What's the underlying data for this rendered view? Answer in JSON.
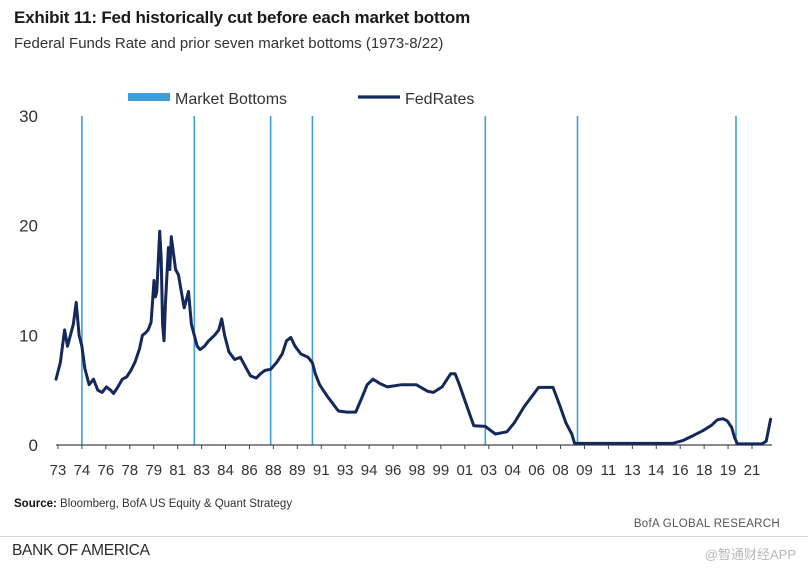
{
  "header": {
    "title": "Exhibit 11: Fed historically cut before each market bottom",
    "subtitle": "Federal Funds Rate and prior seven market bottoms (1973-8/22)"
  },
  "footer": {
    "source_label": "Source:",
    "source_text": "Bloomberg, BofA US Equity & Quant Strategy",
    "research": "BofA GLOBAL RESEARCH",
    "brand": "BANK OF AMERICA",
    "watermark": "@智通财经APP"
  },
  "colors": {
    "line": "#14285a",
    "bottoms": "#3e9fd8",
    "axis": "#444444"
  },
  "chart_data": {
    "type": "line",
    "title": "Exhibit 11: Fed historically cut before each market bottom",
    "subtitle": "Federal Funds Rate and prior seven market bottoms (1973-8/22)",
    "xlabel": "",
    "ylabel": "",
    "xlim": [
      1973,
      2022.7
    ],
    "ylim": [
      0,
      30
    ],
    "y_ticks": [
      0,
      10,
      20,
      30
    ],
    "x_tick_labels": [
      "73",
      "74",
      "76",
      "78",
      "79",
      "81",
      "83",
      "84",
      "86",
      "88",
      "89",
      "91",
      "93",
      "94",
      "96",
      "98",
      "99",
      "01",
      "03",
      "04",
      "06",
      "08",
      "09",
      "11",
      "13",
      "14",
      "16",
      "18",
      "19",
      "21"
    ],
    "legend": [
      "Market Bottoms",
      "FedRates"
    ],
    "legend_position": "top",
    "market_bottoms": [
      1974.8,
      1982.6,
      1987.9,
      1990.8,
      2002.8,
      2009.2,
      2020.2
    ],
    "series": [
      {
        "name": "FedRates",
        "x": [
          1973.0,
          1973.3,
          1973.6,
          1973.8,
          1974.0,
          1974.2,
          1974.4,
          1974.6,
          1974.8,
          1975.0,
          1975.3,
          1975.6,
          1975.9,
          1976.2,
          1976.5,
          1976.8,
          1977.0,
          1977.3,
          1977.6,
          1977.9,
          1978.2,
          1978.5,
          1978.8,
          1979.0,
          1979.2,
          1979.4,
          1979.6,
          1979.7,
          1979.8,
          1979.9,
          1980.0,
          1980.2,
          1980.3,
          1980.4,
          1980.5,
          1980.6,
          1980.8,
          1980.9,
          1981.0,
          1981.1,
          1981.3,
          1981.5,
          1981.7,
          1981.9,
          1982.0,
          1982.2,
          1982.4,
          1982.6,
          1982.8,
          1983.0,
          1983.3,
          1983.6,
          1984.0,
          1984.3,
          1984.5,
          1984.7,
          1985.0,
          1985.4,
          1985.8,
          1986.2,
          1986.5,
          1986.9,
          1987.2,
          1987.5,
          1987.9,
          1988.3,
          1988.7,
          1989.0,
          1989.3,
          1989.6,
          1990.0,
          1990.5,
          1990.8,
          1991.0,
          1991.3,
          1991.8,
          1992.2,
          1992.6,
          1993.2,
          1993.8,
          1994.2,
          1994.6,
          1995.0,
          1995.5,
          1996.0,
          1997.0,
          1998.0,
          1998.8,
          1999.2,
          1999.8,
          2000.4,
          2000.7,
          2001.0,
          2001.4,
          2001.8,
          2002.0,
          2002.8,
          2003.5,
          2004.3,
          2004.8,
          2005.5,
          2006.5,
          2007.5,
          2008.0,
          2008.4,
          2008.8,
          2009.0,
          2015.8,
          2016.5,
          2017.3,
          2017.9,
          2018.5,
          2018.9,
          2019.3,
          2019.6,
          2019.9,
          2020.1,
          2020.3,
          2021.0,
          2022.0,
          2022.3,
          2022.6
        ],
        "values": [
          6.0,
          7.5,
          10.5,
          9.0,
          10.0,
          11.0,
          13.0,
          10.0,
          9.0,
          7.0,
          5.5,
          6.0,
          5.0,
          4.8,
          5.3,
          5.0,
          4.7,
          5.3,
          6.0,
          6.2,
          6.8,
          7.6,
          8.8,
          10.0,
          10.2,
          10.5,
          11.2,
          13.0,
          15.0,
          13.5,
          14.0,
          19.5,
          17.0,
          11.0,
          9.5,
          13.0,
          18.0,
          16.0,
          19.0,
          18.0,
          16.0,
          15.5,
          14.0,
          12.5,
          13.0,
          14.0,
          11.0,
          10.0,
          9.0,
          8.7,
          9.0,
          9.5,
          10.0,
          10.5,
          11.5,
          10.0,
          8.5,
          7.8,
          8.0,
          7.0,
          6.3,
          6.1,
          6.5,
          6.8,
          6.9,
          7.5,
          8.3,
          9.5,
          9.8,
          9.0,
          8.3,
          8.0,
          7.5,
          6.5,
          5.5,
          4.5,
          3.8,
          3.1,
          3.0,
          3.0,
          4.2,
          5.5,
          6.0,
          5.6,
          5.3,
          5.5,
          5.5,
          4.9,
          4.8,
          5.3,
          6.5,
          6.5,
          5.5,
          4.0,
          2.5,
          1.75,
          1.7,
          1.0,
          1.2,
          2.0,
          3.5,
          5.25,
          5.25,
          3.5,
          2.0,
          1.0,
          0.15,
          0.15,
          0.4,
          0.9,
          1.3,
          1.8,
          2.3,
          2.4,
          2.2,
          1.6,
          0.7,
          0.1,
          0.1,
          0.1,
          0.35,
          2.35
        ]
      }
    ]
  }
}
